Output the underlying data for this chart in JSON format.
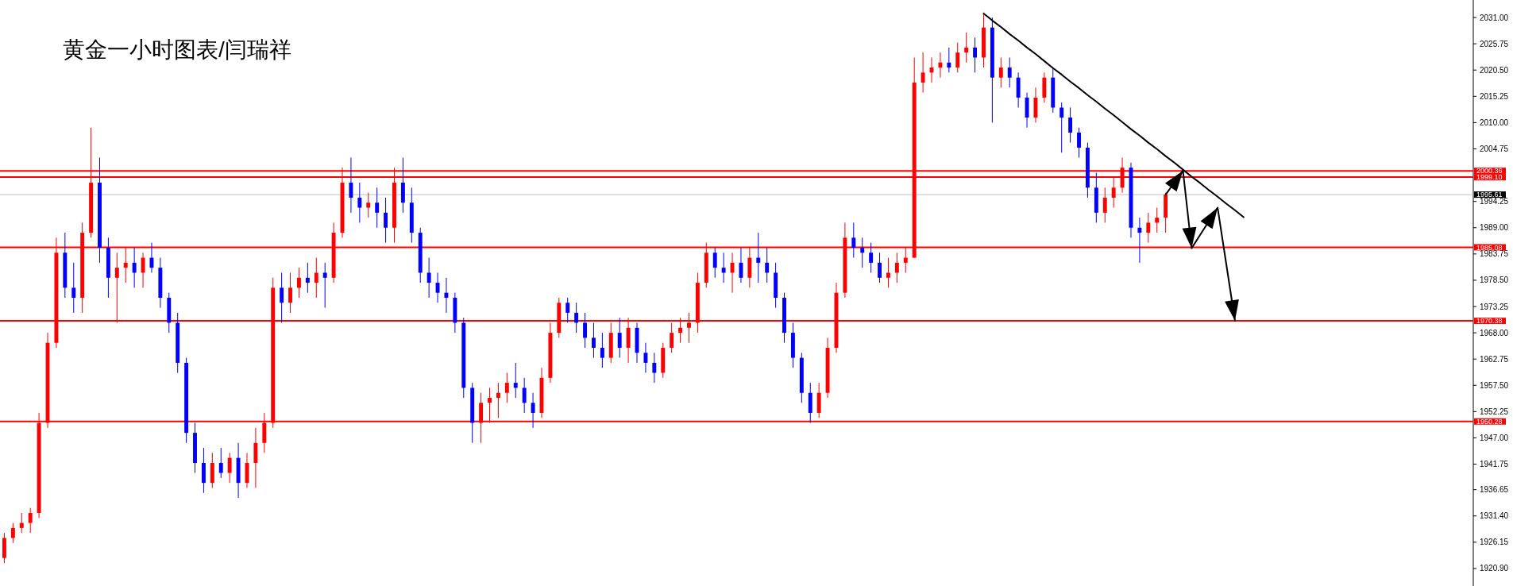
{
  "chart_data": {
    "type": "candlestick",
    "title": "黄金一小时图表/闫瑞祥",
    "categories": [
      null,
      null,
      null,
      null,
      null,
      null,
      null,
      null,
      null,
      null,
      null,
      null,
      null,
      null,
      null,
      null,
      null,
      null,
      null,
      null,
      null,
      null,
      null,
      null,
      null,
      null,
      null,
      null,
      null,
      null,
      null,
      null,
      null,
      null,
      null,
      null,
      null,
      null,
      null,
      null,
      null,
      null,
      null,
      null,
      null,
      null,
      null,
      null,
      null,
      null,
      null,
      null,
      null,
      null,
      null,
      null,
      null,
      null,
      null,
      null,
      null,
      null,
      null,
      null,
      null,
      null,
      null,
      null,
      null,
      null,
      null,
      null,
      null,
      null,
      null,
      null,
      null,
      null,
      null,
      null,
      null,
      null,
      null,
      null,
      null,
      null,
      null,
      null,
      null,
      null,
      null,
      null,
      null,
      null,
      null,
      null,
      null,
      null,
      null,
      null,
      null,
      null,
      null,
      null,
      null,
      null,
      null,
      null,
      null,
      null,
      null,
      null,
      null,
      null,
      null,
      null,
      null,
      null,
      null,
      null,
      null,
      null,
      null,
      null,
      null,
      null,
      null,
      null,
      null,
      null,
      null,
      null,
      null,
      null,
      null,
      null,
      null,
      null,
      null,
      null,
      null,
      null,
      null,
      null,
      null,
      null,
      null,
      null,
      null,
      null,
      null,
      null,
      null,
      null,
      null,
      null,
      null,
      null,
      null,
      null,
      null,
      null,
      null,
      null,
      null,
      null,
      null,
      null,
      null,
      null
    ],
    "ohlc": [
      [
        1923,
        1928,
        1922,
        1927
      ],
      [
        1927,
        1930,
        1926,
        1929
      ],
      [
        1929,
        1932,
        1928,
        1930
      ],
      [
        1930,
        1933,
        1928,
        1932
      ],
      [
        1932,
        1952,
        1931,
        1950
      ],
      [
        1950,
        1968,
        1949,
        1966
      ],
      [
        1966,
        1987,
        1965,
        1984
      ],
      [
        1984,
        1988,
        1975,
        1977
      ],
      [
        1977,
        1982,
        1972,
        1975
      ],
      [
        1975,
        1990,
        1972,
        1988
      ],
      [
        1988,
        2009,
        1987,
        1998
      ],
      [
        1998,
        2003,
        1982,
        1985
      ],
      [
        1985,
        1987,
        1975,
        1979
      ],
      [
        1979,
        1984,
        1970,
        1981
      ],
      [
        1981,
        1985,
        1978,
        1982
      ],
      [
        1982,
        1985,
        1977,
        1980
      ],
      [
        1980,
        1984,
        1977,
        1983
      ],
      [
        1983,
        1986,
        1980,
        1981
      ],
      [
        1981,
        1983,
        1973,
        1975
      ],
      [
        1975,
        1976,
        1968,
        1970
      ],
      [
        1970,
        1972,
        1960,
        1962
      ],
      [
        1962,
        1963,
        1946,
        1948
      ],
      [
        1948,
        1950,
        1940,
        1942
      ],
      [
        1942,
        1945,
        1936,
        1938
      ],
      [
        1938,
        1944,
        1937,
        1942
      ],
      [
        1942,
        1945,
        1939,
        1940
      ],
      [
        1940,
        1944,
        1938,
        1943
      ],
      [
        1943,
        1946,
        1935,
        1938
      ],
      [
        1938,
        1944,
        1937,
        1942
      ],
      [
        1942,
        1949,
        1937,
        1946
      ],
      [
        1946,
        1952,
        1944,
        1950
      ],
      [
        1950,
        1979,
        1949,
        1977
      ],
      [
        1977,
        1980,
        1970,
        1974
      ],
      [
        1974,
        1980,
        1972,
        1977
      ],
      [
        1977,
        1981,
        1975,
        1979
      ],
      [
        1979,
        1982,
        1976,
        1978
      ],
      [
        1978,
        1983,
        1975,
        1980
      ],
      [
        1980,
        1982,
        1973,
        1979
      ],
      [
        1979,
        1990,
        1978,
        1988
      ],
      [
        1988,
        2001,
        1987,
        1998
      ],
      [
        1998,
        2003,
        1992,
        1995
      ],
      [
        1995,
        1998,
        1990,
        1993
      ],
      [
        1993,
        1996,
        1991,
        1994
      ],
      [
        1994,
        1997,
        1989,
        1992
      ],
      [
        1992,
        1995,
        1986,
        1989
      ],
      [
        1989,
        2001,
        1986,
        1998
      ],
      [
        1998,
        2003,
        1992,
        1994
      ],
      [
        1994,
        1997,
        1986,
        1988
      ],
      [
        1988,
        1989,
        1978,
        1980
      ],
      [
        1980,
        1983,
        1975,
        1978
      ],
      [
        1978,
        1980,
        1974,
        1976
      ],
      [
        1976,
        1979,
        1972,
        1975
      ],
      [
        1975,
        1976,
        1968,
        1970
      ],
      [
        1970,
        1971,
        1955,
        1957
      ],
      [
        1957,
        1958,
        1946,
        1950
      ],
      [
        1950,
        1956,
        1946,
        1954
      ],
      [
        1954,
        1957,
        1950,
        1955
      ],
      [
        1955,
        1958,
        1951,
        1956
      ],
      [
        1956,
        1960,
        1954,
        1958
      ],
      [
        1958,
        1962,
        1955,
        1957
      ],
      [
        1957,
        1959,
        1952,
        1954
      ],
      [
        1954,
        1956,
        1949,
        1952
      ],
      [
        1952,
        1961,
        1951,
        1959
      ],
      [
        1959,
        1970,
        1958,
        1968
      ],
      [
        1968,
        1975,
        1967,
        1974
      ],
      [
        1974,
        1975,
        1970,
        1972
      ],
      [
        1972,
        1974,
        1968,
        1970
      ],
      [
        1970,
        1972,
        1965,
        1967
      ],
      [
        1967,
        1970,
        1963,
        1965
      ],
      [
        1965,
        1968,
        1961,
        1963
      ],
      [
        1963,
        1970,
        1962,
        1968
      ],
      [
        1968,
        1971,
        1963,
        1965
      ],
      [
        1965,
        1971,
        1962,
        1969
      ],
      [
        1969,
        1970,
        1962,
        1964
      ],
      [
        1964,
        1966,
        1960,
        1962
      ],
      [
        1962,
        1964,
        1958,
        1960
      ],
      [
        1960,
        1966,
        1959,
        1965
      ],
      [
        1965,
        1970,
        1964,
        1968
      ],
      [
        1968,
        1971,
        1966,
        1969
      ],
      [
        1969,
        1972,
        1966,
        1970
      ],
      [
        1970,
        1980,
        1968,
        1978
      ],
      [
        1978,
        1986,
        1977,
        1984
      ],
      [
        1984,
        1985,
        1979,
        1981
      ],
      [
        1981,
        1984,
        1978,
        1980
      ],
      [
        1980,
        1984,
        1976,
        1982
      ],
      [
        1982,
        1985,
        1978,
        1979
      ],
      [
        1979,
        1985,
        1977,
        1983
      ],
      [
        1983,
        1988,
        1978,
        1982
      ],
      [
        1982,
        1985,
        1978,
        1980
      ],
      [
        1980,
        1982,
        1973,
        1975
      ],
      [
        1975,
        1976,
        1966,
        1968
      ],
      [
        1968,
        1970,
        1961,
        1963
      ],
      [
        1963,
        1964,
        1954,
        1956
      ],
      [
        1956,
        1958,
        1950,
        1952
      ],
      [
        1952,
        1958,
        1951,
        1956
      ],
      [
        1956,
        1967,
        1955,
        1965
      ],
      [
        1965,
        1978,
        1964,
        1976
      ],
      [
        1976,
        1990,
        1975,
        1987
      ],
      [
        1987,
        1990,
        1983,
        1985
      ],
      [
        1985,
        1987,
        1981,
        1984
      ],
      [
        1984,
        1986,
        1980,
        1982
      ],
      [
        1982,
        1984,
        1978,
        1979
      ],
      [
        1979,
        1983,
        1977,
        1980
      ],
      [
        1980,
        1984,
        1978,
        1982
      ],
      [
        1982,
        1985,
        1980,
        1983
      ],
      [
        1983,
        2023,
        1983,
        2018
      ],
      [
        2018,
        2024,
        2016,
        2020
      ],
      [
        2020,
        2023,
        2018,
        2021
      ],
      [
        2021,
        2024,
        2019,
        2022
      ],
      [
        2022,
        2025,
        2020,
        2021
      ],
      [
        2021,
        2026,
        2020,
        2024
      ],
      [
        2024,
        2028,
        2022,
        2025
      ],
      [
        2025,
        2027,
        2020,
        2023
      ],
      [
        2023,
        2032,
        2021,
        2029
      ],
      [
        2029,
        2031,
        2010,
        2019
      ],
      [
        2019,
        2023,
        2017,
        2021
      ],
      [
        2021,
        2023,
        2017,
        2019
      ],
      [
        2019,
        2020,
        2013,
        2015
      ],
      [
        2015,
        2016,
        2009,
        2011
      ],
      [
        2011,
        2017,
        2010,
        2015
      ],
      [
        2015,
        2020,
        2014,
        2019
      ],
      [
        2019,
        2021,
        2012,
        2013
      ],
      [
        2013,
        2014,
        2004,
        2011
      ],
      [
        2011,
        2013,
        2006,
        2008
      ],
      [
        2008,
        2009,
        2003,
        2005
      ],
      [
        2005,
        2006,
        1995,
        1997
      ],
      [
        1997,
        2000,
        1990,
        1992
      ],
      [
        1992,
        1997,
        1990,
        1995
      ],
      [
        1995,
        1999,
        1993,
        1997
      ],
      [
        1997,
        2003,
        1996,
        2001
      ],
      [
        2001,
        2002,
        1987,
        1989
      ],
      [
        1989,
        1991,
        1982,
        1988
      ],
      [
        1988,
        1992,
        1986,
        1990
      ],
      [
        1990,
        1993,
        1988,
        1991
      ],
      [
        1991,
        1996,
        1988,
        1995.61
      ],
      null,
      null,
      null,
      null,
      null,
      null,
      null,
      null,
      null,
      null,
      null,
      null,
      null,
      null,
      null,
      null,
      null,
      null,
      null,
      null,
      null,
      null,
      null,
      null,
      null,
      null,
      null,
      null,
      null,
      null,
      null,
      null,
      null,
      null,
      null
    ],
    "colors": [
      "#ff0000",
      "#ff0000",
      "#ff0000",
      "#ff0000",
      "#ff0000",
      "#ff0000",
      "#ff0000",
      "#0000ff",
      "#0000ff",
      "#ff0000",
      "#ff0000",
      "#0000ff",
      "#0000ff",
      "#ff0000",
      "#ff0000",
      "#0000ff",
      "#ff0000",
      "#0000ff",
      "#0000ff",
      "#0000ff",
      "#0000ff",
      "#0000ff",
      "#0000ff",
      "#0000ff",
      "#ff0000",
      "#0000ff",
      "#ff0000",
      "#0000ff",
      "#ff0000",
      "#ff0000",
      "#ff0000",
      "#ff0000",
      "#0000ff",
      "#ff0000",
      "#ff0000",
      "#0000ff",
      "#ff0000",
      "#0000ff",
      "#ff0000",
      "#ff0000",
      "#0000ff",
      "#0000ff",
      "#ff0000",
      "#0000ff",
      "#0000ff",
      "#ff0000",
      "#0000ff",
      "#0000ff",
      "#0000ff",
      "#0000ff",
      "#0000ff",
      "#0000ff",
      "#0000ff",
      "#0000ff",
      "#0000ff",
      "#ff0000",
      "#ff0000",
      "#ff0000",
      "#ff0000",
      "#0000ff",
      "#0000ff",
      "#0000ff",
      "#ff0000",
      "#ff0000",
      "#ff0000",
      "#0000ff",
      "#0000ff",
      "#0000ff",
      "#0000ff",
      "#0000ff",
      "#ff0000",
      "#0000ff",
      "#ff0000",
      "#0000ff",
      "#0000ff",
      "#0000ff",
      "#ff0000",
      "#ff0000",
      "#ff0000",
      "#ff0000",
      "#ff0000",
      "#ff0000",
      "#0000ff",
      "#0000ff",
      "#ff0000",
      "#0000ff",
      "#ff0000",
      "#0000ff",
      "#0000ff",
      "#0000ff",
      "#0000ff",
      "#0000ff",
      "#0000ff",
      "#0000ff",
      "#ff0000",
      "#ff0000",
      "#ff0000",
      "#ff0000",
      "#0000ff",
      "#0000ff",
      "#0000ff",
      "#0000ff",
      "#ff0000",
      "#ff0000",
      "#ff0000",
      "#ff0000",
      "#ff0000",
      "#ff0000",
      "#ff0000",
      "#0000ff",
      "#ff0000",
      "#ff0000",
      "#0000ff",
      "#ff0000",
      "#0000ff",
      "#ff0000",
      "#0000ff",
      "#0000ff",
      "#0000ff",
      "#ff0000",
      "#ff0000",
      "#0000ff",
      "#0000ff",
      "#0000ff",
      "#0000ff",
      "#0000ff",
      "#0000ff",
      "#ff0000",
      "#ff0000",
      "#ff0000",
      "#0000ff",
      "#0000ff",
      "#ff0000",
      "#ff0000",
      "#ff0000",
      null,
      null,
      null,
      null,
      null,
      null,
      null,
      null,
      null,
      null,
      null,
      null,
      null,
      null,
      null,
      null,
      null,
      null,
      null,
      null,
      null,
      null,
      null,
      null,
      null,
      null,
      null,
      null,
      null,
      null,
      null,
      null,
      null,
      null,
      null
    ],
    "series": [
      {
        "type": "line",
        "color": "#000000",
        "values": [
          null,
          null,
          null,
          null,
          null,
          null,
          null,
          null,
          null,
          null,
          null,
          null,
          null,
          null,
          null,
          null,
          null,
          null,
          null,
          null,
          null,
          null,
          null,
          null,
          null,
          null,
          null,
          null,
          null,
          null,
          null,
          null,
          null,
          null,
          null,
          null,
          null,
          null,
          null,
          null,
          null,
          null,
          null,
          null,
          null,
          null,
          null,
          null,
          null,
          null,
          null,
          null,
          null,
          null,
          null,
          null,
          null,
          null,
          null,
          null,
          null,
          null,
          null,
          null,
          null,
          null,
          null,
          null,
          null,
          null,
          null,
          null,
          null,
          null,
          null,
          null,
          null,
          null,
          null,
          null,
          null,
          null,
          null,
          null,
          null,
          null,
          null,
          null,
          null,
          null,
          null,
          null,
          null,
          null,
          null,
          null,
          null,
          null,
          null,
          null,
          null,
          null,
          null,
          null,
          null,
          null,
          null,
          null,
          null,
          null,
          null,
          null,
          null,
          2031.8,
          2030.4,
          2029.1,
          2027.7,
          2026.4,
          2025.0,
          2023.7,
          2022.3,
          2020.9,
          2019.6,
          2018.2,
          2016.9,
          2015.5,
          2014.2,
          2012.8,
          2011.5,
          2010.1,
          2008.7,
          2007.4,
          2006.0,
          2004.7,
          2003.3,
          2002.0,
          2000.6,
          1999.2,
          1997.9,
          1996.5,
          1995.2,
          1993.8,
          1992.5,
          1991.1,
          null,
          null,
          null,
          null,
          null,
          null,
          null,
          null,
          null,
          null,
          null,
          null,
          null,
          null,
          null,
          null,
          null,
          null,
          null,
          null,
          null,
          null,
          null,
          null,
          null,
          null
        ]
      },
      {
        "type": "line",
        "color": "#000000",
        "values": [
          null,
          null,
          null,
          null,
          null,
          null,
          null,
          null,
          null,
          null,
          null,
          null,
          null,
          null,
          null,
          null,
          null,
          null,
          null,
          null,
          null,
          null,
          null,
          null,
          null,
          null,
          null,
          null,
          null,
          null,
          null,
          null,
          null,
          null,
          null,
          null,
          null,
          null,
          null,
          null,
          null,
          null,
          null,
          null,
          null,
          null,
          null,
          null,
          null,
          null,
          null,
          null,
          null,
          null,
          null,
          null,
          null,
          null,
          null,
          null,
          null,
          null,
          null,
          null,
          null,
          null,
          null,
          null,
          null,
          null,
          null,
          null,
          null,
          null,
          null,
          null,
          null,
          null,
          null,
          null,
          null,
          null,
          null,
          null,
          null,
          null,
          null,
          null,
          null,
          null,
          null,
          null,
          null,
          null,
          null,
          null,
          null,
          null,
          null,
          null,
          null,
          null,
          null,
          null,
          null,
          null,
          null,
          null,
          null,
          null,
          null,
          null,
          null,
          null,
          null,
          null,
          null,
          null,
          null,
          null,
          null,
          null,
          null,
          null,
          null,
          null,
          null,
          null,
          null,
          null,
          null,
          null,
          null,
          null,
          1995.6,
          1998.0,
          2000.4,
          1984.9,
          1987.6,
          1990.3,
          1993.0,
          1981.7,
          1970.4,
          null,
          null,
          null,
          null,
          null,
          null,
          null,
          null,
          null,
          null,
          null,
          null,
          null,
          null,
          null,
          null,
          null,
          null,
          null,
          null,
          null,
          null,
          null,
          null,
          null,
          null,
          null
        ]
      }
    ],
    "ylim": [
      1917.4,
      2034.5
    ],
    "tick_labels": "y",
    "yticks": [
      {
        "value": 2031,
        "label": "2031.00"
      },
      {
        "value": 2025.75,
        "label": "2025.75"
      },
      {
        "value": 2020.5,
        "label": "2020.50"
      },
      {
        "value": 2015.25,
        "label": "2015.25"
      },
      {
        "value": 2010,
        "label": "2010.00"
      },
      {
        "value": 2004.75,
        "label": "2004.75"
      },
      {
        "value": 1994.25,
        "label": "1994.25"
      },
      {
        "value": 1989,
        "label": "1989.00"
      },
      {
        "value": 1983.75,
        "label": "1983.75"
      },
      {
        "value": 1978.5,
        "label": "1978.50"
      },
      {
        "value": 1973.25,
        "label": "1973.25"
      },
      {
        "value": 1968,
        "label": "1968.00"
      },
      {
        "value": 1962.75,
        "label": "1962.75"
      },
      {
        "value": 1957.5,
        "label": "1957.50"
      },
      {
        "value": 1952.25,
        "label": "1952.25"
      },
      {
        "value": 1947,
        "label": "1947.00"
      },
      {
        "value": 1941.75,
        "label": "1941.75"
      },
      {
        "value": 1936.65,
        "label": "1936.65"
      },
      {
        "value": 1931.4,
        "label": "1931.40"
      },
      {
        "value": 1926.15,
        "label": "1926.15"
      },
      {
        "value": 1920.9,
        "label": "1920.90"
      }
    ],
    "ref_lines": [
      {
        "axis": "y",
        "value": 2000.36,
        "label": "2000.36",
        "color": "#ff0000"
      },
      {
        "axis": "y",
        "value": 1999.1,
        "label": "1999.10",
        "color": "#ff0000"
      },
      {
        "axis": "y",
        "value": 1995.61,
        "label": "1995.61",
        "color": "#c0c0c0"
      },
      {
        "axis": "y",
        "value": 1985.08,
        "label": "1985.08",
        "color": "#ff0000"
      },
      {
        "axis": "y",
        "value": 1970.38,
        "label": "1970.38",
        "color": "#ff0000"
      },
      {
        "axis": "y",
        "value": 1950.28,
        "label": "1950.28",
        "color": "#ff0000"
      }
    ]
  }
}
